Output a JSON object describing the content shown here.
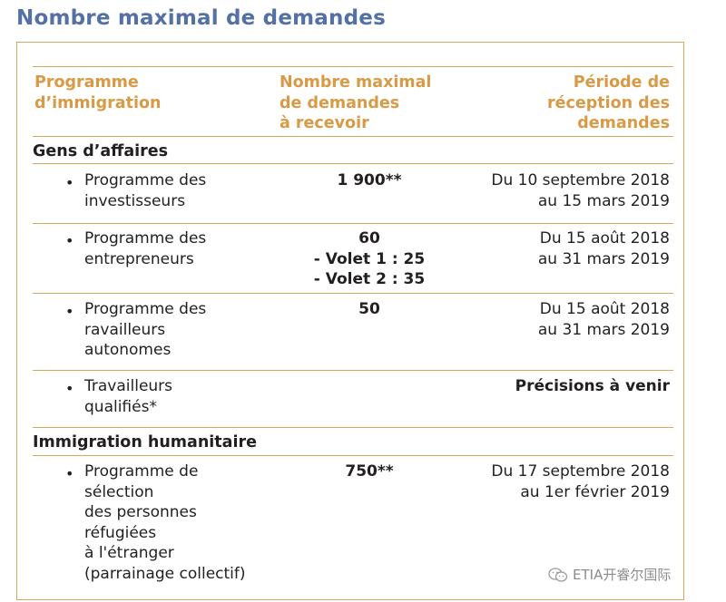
{
  "title": "Nombre maximal de demandes",
  "headers": {
    "program": [
      "Programme",
      "d’immigration"
    ],
    "count": [
      "Nombre maximal",
      "de demandes",
      "à recevoir"
    ],
    "period": [
      "Période de",
      "réception des",
      "demandes"
    ]
  },
  "sections": [
    {
      "name": "Gens d’affaires",
      "rows": [
        {
          "program": [
            "Programme des",
            "investisseurs"
          ],
          "count": [
            "1 900**"
          ],
          "period": [
            "Du 10 septembre 2018",
            "au 15 mars 2019"
          ],
          "period_bold": false
        },
        {
          "program": [
            "Programme des",
            "entrepreneurs"
          ],
          "count": [
            "60",
            "- Volet 1 : 25",
            "- Volet 2 : 35"
          ],
          "period": [
            "Du 15 août 2018",
            "au 31 mars 2019"
          ],
          "period_bold": false
        },
        {
          "program": [
            "Programme des",
            "ravailleurs",
            "autonomes"
          ],
          "count": [
            "50"
          ],
          "period": [
            "Du 15 août 2018",
            "au 31 mars 2019"
          ],
          "period_bold": false
        },
        {
          "program": [
            "Travailleurs",
            "qualifiés*"
          ],
          "count": [],
          "period": [
            "Précisions à venir"
          ],
          "period_bold": true
        }
      ]
    },
    {
      "name": "Immigration humanitaire",
      "rows": [
        {
          "program": [
            "Programme de",
            "sélection",
            "des personnes",
            "réfugiées",
            "à l'étranger",
            "(parrainage collectif)"
          ],
          "count": [
            "750**"
          ],
          "period": [
            "Du 17 septembre 2018",
            "au 1er février 2019"
          ],
          "period_bold": false
        }
      ]
    }
  ],
  "watermark": "ETIA开睿尔国际",
  "colors": {
    "title": "#5471a6",
    "accent": "#d99a45",
    "rule": "#d9a45c"
  }
}
